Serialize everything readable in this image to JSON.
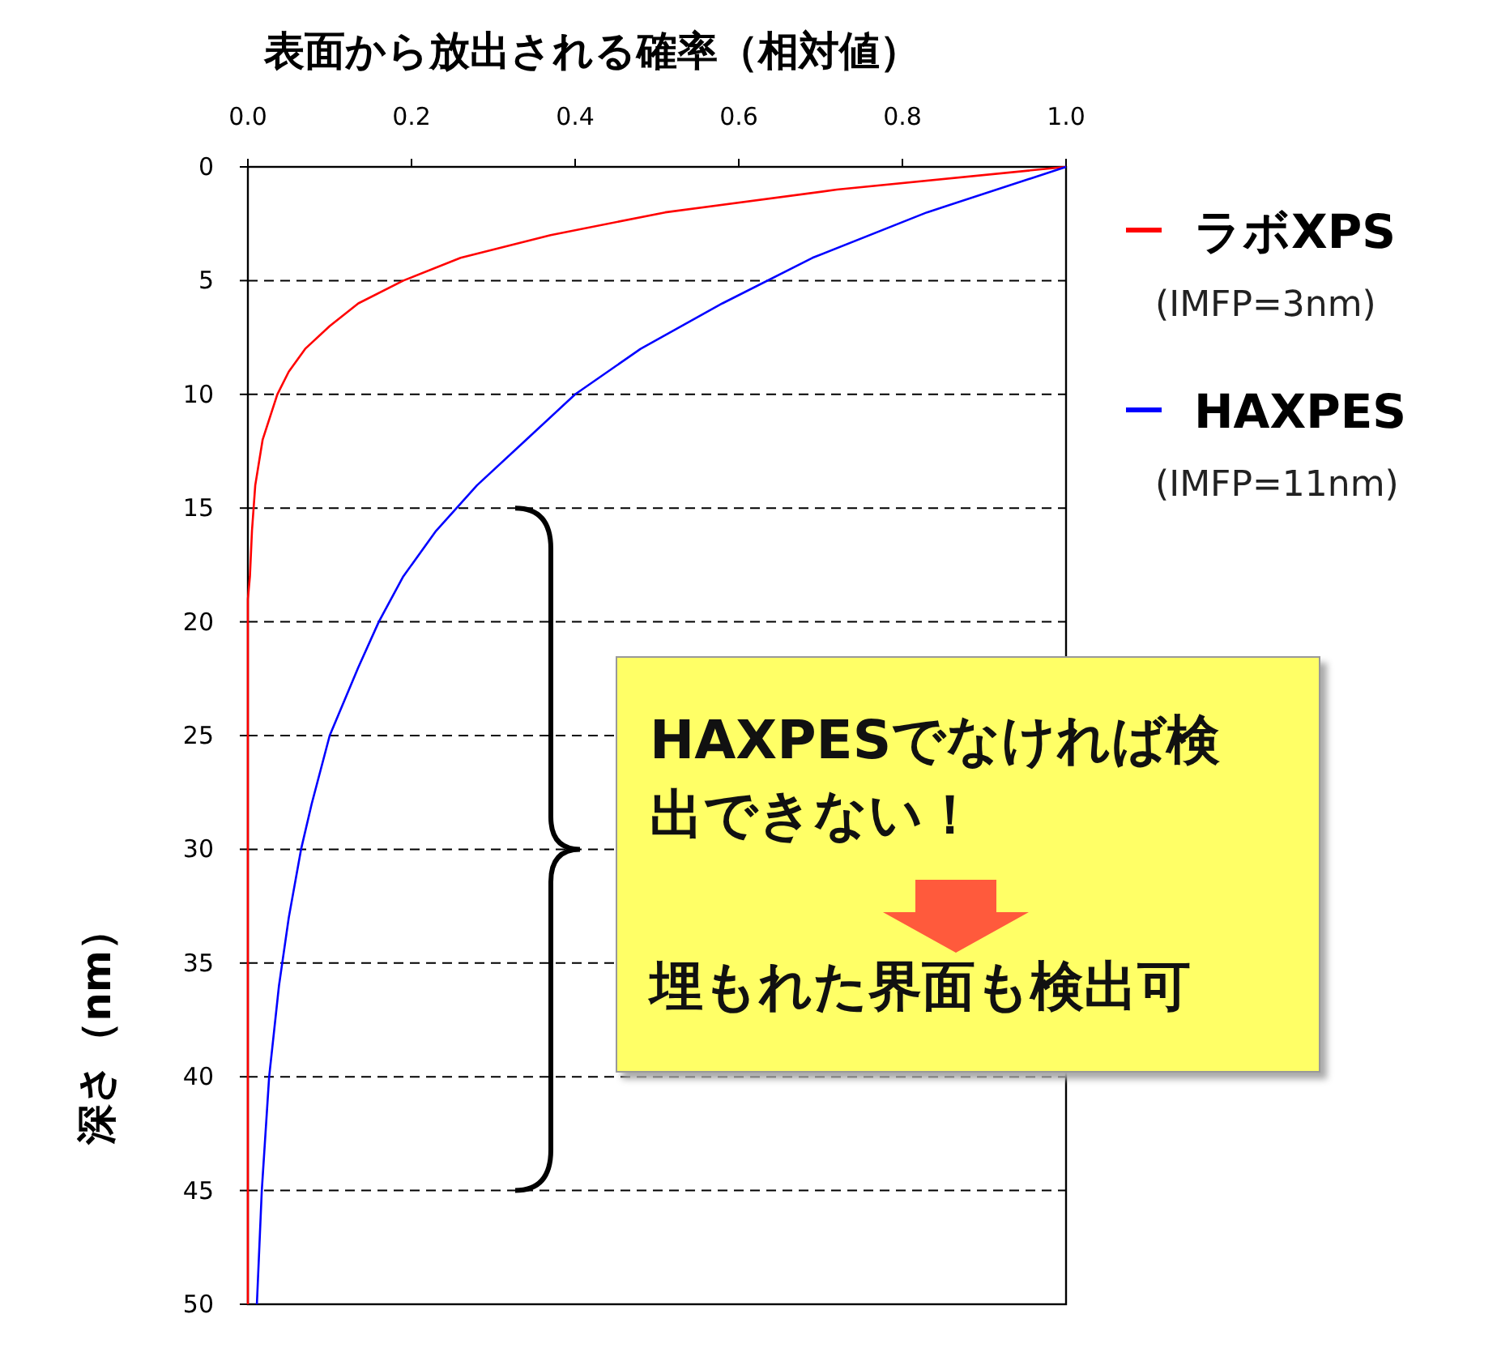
{
  "chart_data": {
    "type": "line",
    "xlabel": "表面から放出される確率（相対値）",
    "ylabel": "深さ（nm）",
    "xlim": [
      0,
      1
    ],
    "ylim": [
      50,
      0
    ],
    "xticks": [
      {
        "value": 0,
        "label": "0.0"
      },
      {
        "value": 0.2,
        "label": "0.2"
      },
      {
        "value": 0.4,
        "label": "0.4"
      },
      {
        "value": 0.6,
        "label": "0.6"
      },
      {
        "value": 0.8,
        "label": "0.8"
      },
      {
        "value": 1,
        "label": "1.0"
      }
    ],
    "yticks": [
      0,
      5,
      10,
      15,
      20,
      25,
      30,
      35,
      40,
      45,
      50
    ],
    "grid": "y",
    "legend": "right",
    "line_style": "solid",
    "series": [
      {
        "name": "ラボXPS",
        "color": "#ff0000",
        "x": [
          1,
          0.72,
          0.51,
          0.37,
          0.26,
          0.19,
          0.135,
          0.1,
          0.07,
          0.05,
          0.036,
          0.018,
          0.009,
          0.005,
          0.0025,
          0,
          0,
          0,
          0,
          0,
          0,
          0
        ],
        "values": [
          0,
          1,
          2,
          3,
          4,
          5,
          6,
          7,
          8,
          9,
          10,
          12,
          14,
          16,
          18,
          19,
          20,
          25,
          30,
          35,
          40,
          50
        ]
      },
      {
        "name": "HAXPES",
        "color": "#0000ff",
        "x": [
          1,
          0.83,
          0.69,
          0.58,
          0.48,
          0.4,
          0.34,
          0.28,
          0.23,
          0.19,
          0.16,
          0.135,
          0.1,
          0.078,
          0.065,
          0.05,
          0.038,
          0.026,
          0.017,
          0.011
        ],
        "values": [
          0,
          2,
          4,
          6,
          8,
          10,
          12,
          14,
          16,
          18,
          20,
          22,
          25,
          28,
          30,
          33,
          36,
          40,
          45,
          50
        ]
      }
    ],
    "annotations": [
      "(IMFP=3nm)",
      "(IMFP=11nm)",
      "HAXPESでなければ検出できない！",
      "埋もれた界面も検出可"
    ]
  }
}
